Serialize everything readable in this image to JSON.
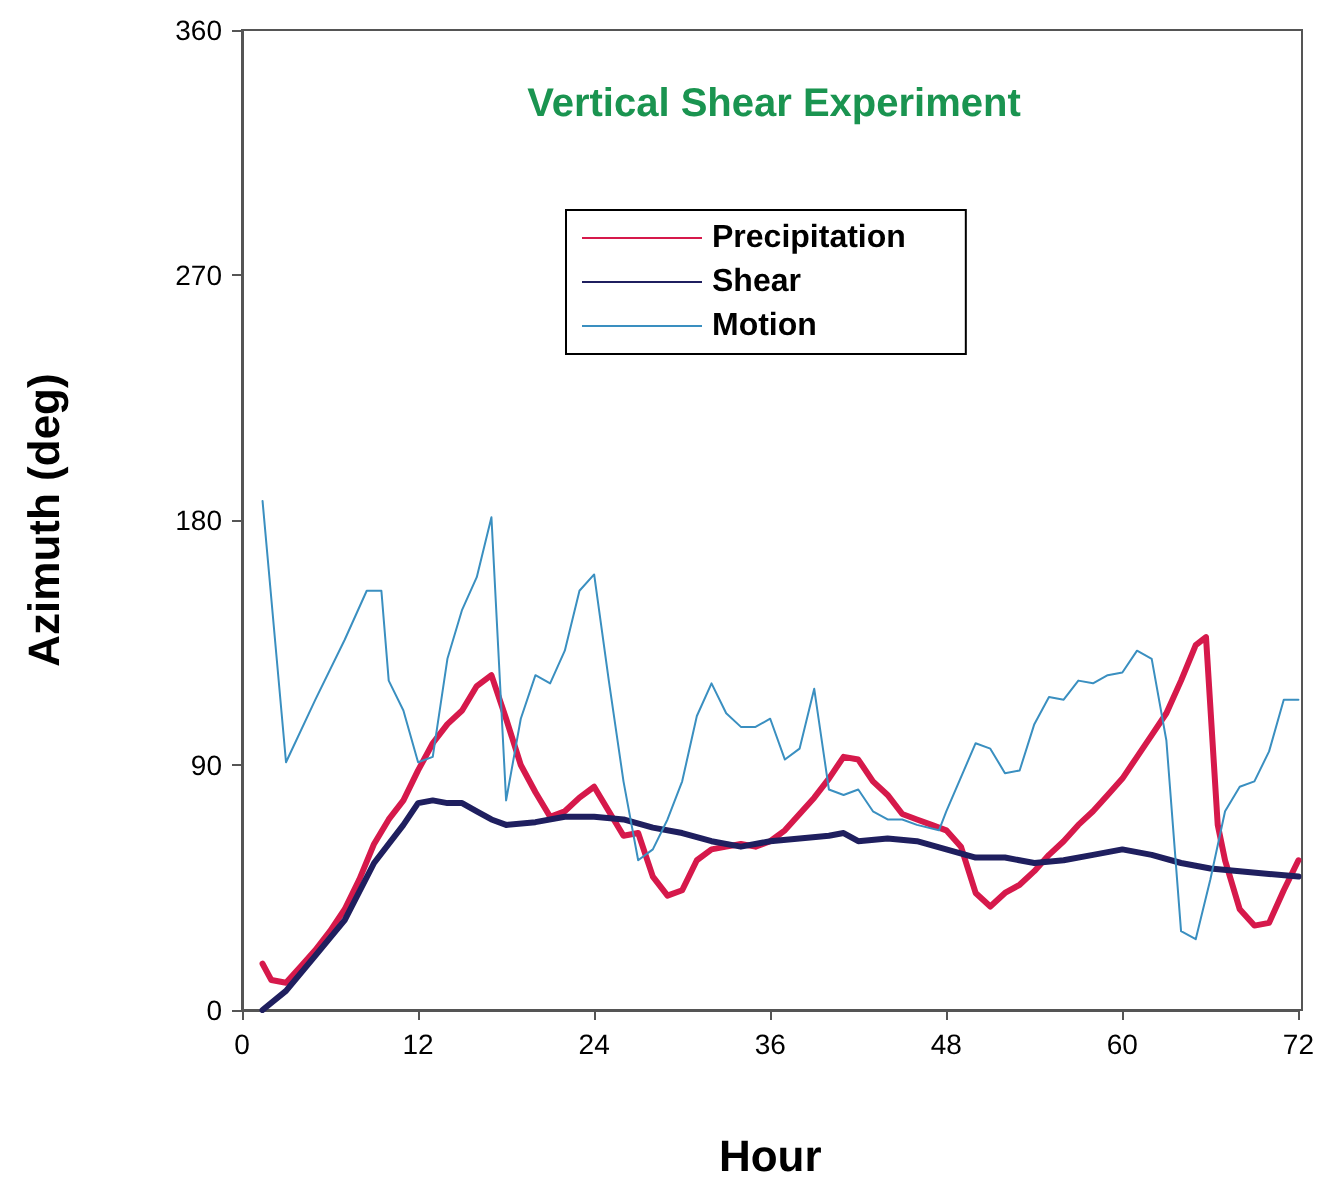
{
  "chart_data": {
    "type": "line",
    "title": "Vertical Shear Experiment",
    "xlabel": "Hour",
    "ylabel": "Azimuth (deg)",
    "xlim": [
      0,
      72
    ],
    "xticks": [
      0,
      12,
      24,
      36,
      48,
      60,
      72
    ],
    "ylim": [
      0,
      360
    ],
    "yticks": [
      0,
      90,
      180,
      270,
      360
    ],
    "grid": false,
    "legend": "top",
    "marker": "none",
    "line_style": "solid",
    "series": [
      {
        "name": "Precipitation",
        "color": "#d6194b",
        "x": [
          1.4,
          2,
          3,
          4,
          5,
          6,
          7,
          8,
          9,
          10,
          11,
          12,
          13,
          14,
          15,
          16,
          17,
          18,
          19,
          20,
          21,
          22,
          23,
          24,
          25,
          26,
          27,
          28,
          29,
          30,
          31,
          32,
          33,
          34,
          35,
          36,
          37,
          38,
          39,
          40,
          41,
          42,
          43,
          44,
          45,
          46,
          47,
          48,
          49,
          50,
          51,
          52,
          53,
          54,
          55,
          56,
          57,
          58,
          59,
          60,
          61,
          62,
          63,
          64,
          65,
          65.7,
          66.5,
          67,
          68,
          69,
          70,
          71,
          72
        ],
        "values": [
          17,
          11,
          10,
          16,
          22,
          29,
          37,
          48,
          61,
          70,
          77,
          88,
          98,
          105,
          110,
          119,
          123,
          107,
          90,
          80,
          71,
          73,
          78,
          82,
          73,
          64,
          65,
          49,
          42,
          44,
          55,
          59,
          60,
          61,
          60,
          62,
          66,
          72,
          78,
          85,
          93,
          92,
          84,
          79,
          72,
          70,
          68,
          66,
          60,
          43,
          38,
          43,
          46,
          51,
          57,
          62,
          68,
          73,
          79,
          85,
          93,
          101,
          109,
          121,
          134,
          137,
          68,
          55,
          37,
          31,
          32,
          44,
          55
        ]
      },
      {
        "name": "Shear",
        "color": "#1f1f5f",
        "x": [
          1.4,
          3,
          5,
          7,
          9,
          11,
          12,
          13,
          14,
          15,
          16,
          17,
          18,
          20,
          22,
          24,
          26,
          28,
          30,
          32,
          34,
          36,
          38,
          40,
          41,
          42,
          44,
          46,
          48,
          50,
          52,
          54,
          56,
          58,
          60,
          62,
          64,
          66,
          68,
          70,
          72
        ],
        "values": [
          0,
          7,
          20,
          33,
          54,
          68,
          76,
          77,
          76,
          76,
          73,
          70,
          68,
          69,
          71,
          71,
          70,
          67,
          65,
          62,
          60,
          62,
          63,
          64,
          65,
          62,
          63,
          62,
          59,
          56,
          56,
          54,
          55,
          57,
          59,
          57,
          54,
          52,
          51,
          50,
          49
        ]
      },
      {
        "name": "Motion",
        "color": "#3a8fc0",
        "x": [
          1.4,
          3,
          5,
          7,
          8.5,
          9.5,
          10,
          11,
          12,
          13,
          14,
          15,
          16,
          17,
          18,
          19,
          20,
          21,
          22,
          23,
          24,
          25,
          26,
          27,
          28,
          29,
          30,
          31,
          32,
          33,
          34,
          35,
          36,
          37,
          38,
          39,
          40,
          41,
          42,
          43,
          44,
          45,
          46,
          47.5,
          48,
          50,
          51,
          52,
          53,
          54,
          55,
          56,
          57,
          58,
          59,
          60,
          61,
          62,
          63,
          64,
          65,
          66,
          67,
          68,
          69,
          70,
          71,
          72
        ],
        "values": [
          187,
          91,
          114,
          136,
          154,
          154,
          121,
          110,
          91,
          93,
          129,
          147,
          159,
          181,
          77,
          107,
          123,
          120,
          132,
          154,
          160,
          121,
          84,
          55,
          59,
          70,
          84,
          108,
          120,
          109,
          104,
          104,
          107,
          92,
          96,
          118,
          81,
          79,
          81,
          73,
          70,
          70,
          68,
          66,
          73,
          98,
          96,
          87,
          88,
          105,
          115,
          114,
          121,
          120,
          123,
          124,
          132,
          129,
          99,
          29,
          26,
          48,
          73,
          82,
          84,
          95,
          114,
          114
        ]
      }
    ]
  }
}
